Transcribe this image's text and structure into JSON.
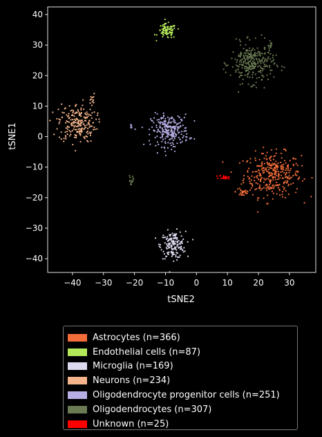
{
  "chart_data": {
    "type": "scatter",
    "xlabel": "tSNE2",
    "ylabel": "tSNE1",
    "xlim": [
      -48,
      38.5
    ],
    "ylim": [
      -44.5,
      42.5
    ],
    "xticks": [
      -40,
      -30,
      -20,
      -10,
      0,
      10,
      20,
      30
    ],
    "yticks": [
      -40,
      -30,
      -20,
      -10,
      0,
      10,
      20,
      30,
      40
    ],
    "grid": false,
    "legend_position": "below",
    "series": [
      {
        "name": "Astrocytes (n=366)",
        "color": "#f26d3a",
        "count": 366,
        "clusters": [
          {
            "cx": 24.5,
            "cy": -12.5,
            "sx": 4.6,
            "sy": 3.6,
            "n": 340
          },
          {
            "cx": 15,
            "cy": -18,
            "sx": 1.2,
            "sy": 1.0,
            "n": 26
          }
        ]
      },
      {
        "name": "Endothelial cells (n=87)",
        "color": "#b3e85a",
        "count": 87,
        "clusters": [
          {
            "cx": -9.5,
            "cy": 34.5,
            "sx": 1.5,
            "sy": 1.2,
            "n": 87
          }
        ]
      },
      {
        "name": "Microglia (n=169)",
        "color": "#dddaf0",
        "count": 169,
        "clusters": [
          {
            "cx": -7.5,
            "cy": -35.5,
            "sx": 2.0,
            "sy": 2.2,
            "n": 169
          }
        ]
      },
      {
        "name": "Neurons (n=234)",
        "color": "#f5b48c",
        "count": 234,
        "clusters": [
          {
            "cx": -38.5,
            "cy": 4.5,
            "sx": 3.0,
            "sy": 3.2,
            "n": 224
          },
          {
            "cx": -33.5,
            "cy": 12,
            "sx": 0.6,
            "sy": 1.0,
            "n": 10
          }
        ]
      },
      {
        "name": "Oligodendrocyte progenitor cells (n=251)",
        "color": "#b7aee6",
        "count": 251,
        "clusters": [
          {
            "cx": -8.5,
            "cy": 2.0,
            "sx": 3.0,
            "sy": 2.6,
            "n": 246
          },
          {
            "cx": -21,
            "cy": 3.3,
            "sx": 0.4,
            "sy": 0.3,
            "n": 5
          }
        ]
      },
      {
        "name": "Oligodendrocytes (n=307)",
        "color": "#6a7a52",
        "count": 307,
        "clusters": [
          {
            "cx": 18,
            "cy": 24,
            "sx": 3.5,
            "sy": 3.2,
            "n": 285
          },
          {
            "cx": -21,
            "cy": -14.5,
            "sx": 0.5,
            "sy": 1.0,
            "n": 14
          },
          {
            "cx": 24,
            "cy": 30,
            "sx": 0.6,
            "sy": 0.5,
            "n": 8
          }
        ]
      },
      {
        "name": "Unknown (n=25)",
        "color": "#ff0000",
        "count": 25,
        "clusters": [
          {
            "cx": 9,
            "cy": -13.3,
            "sx": 0.8,
            "sy": 0.3,
            "n": 25
          }
        ]
      }
    ]
  }
}
